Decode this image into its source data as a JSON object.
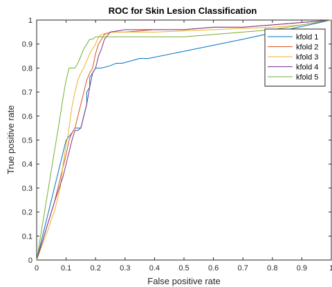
{
  "chart_data": {
    "type": "line",
    "title": "ROC for Skin Lesion Classification",
    "xlabel": "False positive rate",
    "ylabel": "True positive rate",
    "xlim": [
      0,
      1
    ],
    "ylim": [
      0,
      1
    ],
    "xticks": [
      "0",
      "0.1",
      "0.2",
      "0.3",
      "0.4",
      "0.5",
      "0.6",
      "0.7",
      "0.8",
      "0.9",
      "1"
    ],
    "yticks": [
      "0",
      "0.1",
      "0.2",
      "0.3",
      "0.4",
      "0.5",
      "0.6",
      "0.7",
      "0.8",
      "0.9",
      "1"
    ],
    "grid": false,
    "legend_position": "top-right",
    "series": [
      {
        "name": "kfold 1",
        "color": "#0072BD",
        "x": [
          0,
          0.02,
          0.04,
          0.06,
          0.08,
          0.09,
          0.1,
          0.12,
          0.13,
          0.14,
          0.15,
          0.16,
          0.17,
          0.17,
          0.18,
          0.18,
          0.19,
          0.2,
          0.22,
          0.25,
          0.27,
          0.29,
          0.32,
          0.35,
          0.38,
          0.5,
          0.7,
          0.85,
          1.0
        ],
        "y": [
          0,
          0.1,
          0.2,
          0.3,
          0.4,
          0.45,
          0.5,
          0.53,
          0.55,
          0.55,
          0.55,
          0.6,
          0.65,
          0.7,
          0.72,
          0.76,
          0.78,
          0.8,
          0.8,
          0.81,
          0.82,
          0.82,
          0.83,
          0.84,
          0.84,
          0.87,
          0.92,
          0.96,
          1.0
        ]
      },
      {
        "name": "kfold 2",
        "color": "#D95319",
        "x": [
          0,
          0.03,
          0.06,
          0.08,
          0.1,
          0.11,
          0.12,
          0.13,
          0.14,
          0.15,
          0.16,
          0.17,
          0.18,
          0.19,
          0.2,
          0.21,
          0.22,
          0.23,
          0.25,
          0.3,
          0.4,
          0.5,
          0.6,
          0.7,
          0.8,
          0.9,
          1.0
        ],
        "y": [
          0,
          0.12,
          0.24,
          0.34,
          0.44,
          0.5,
          0.53,
          0.55,
          0.6,
          0.65,
          0.7,
          0.75,
          0.78,
          0.8,
          0.86,
          0.9,
          0.92,
          0.94,
          0.95,
          0.95,
          0.96,
          0.96,
          0.97,
          0.97,
          0.98,
          0.99,
          1.0
        ]
      },
      {
        "name": "kfold 3",
        "color": "#EDB120",
        "x": [
          0,
          0.03,
          0.04,
          0.05,
          0.06,
          0.07,
          0.08,
          0.09,
          0.1,
          0.11,
          0.12,
          0.13,
          0.14,
          0.15,
          0.16,
          0.17,
          0.18,
          0.19,
          0.2,
          0.21,
          0.22,
          0.25,
          0.3,
          0.4,
          0.6,
          0.8,
          0.9,
          1.0
        ],
        "y": [
          0,
          0.1,
          0.13,
          0.17,
          0.2,
          0.25,
          0.3,
          0.4,
          0.48,
          0.55,
          0.64,
          0.7,
          0.75,
          0.78,
          0.8,
          0.83,
          0.86,
          0.88,
          0.9,
          0.93,
          0.94,
          0.95,
          0.95,
          0.95,
          0.96,
          0.97,
          0.98,
          1.0
        ]
      },
      {
        "name": "kfold 4",
        "color": "#7E2F8E",
        "x": [
          0,
          0.03,
          0.06,
          0.09,
          0.11,
          0.12,
          0.13,
          0.14,
          0.15,
          0.16,
          0.17,
          0.18,
          0.19,
          0.2,
          0.21,
          0.22,
          0.23,
          0.25,
          0.3,
          0.4,
          0.5,
          0.6,
          0.7,
          0.8,
          0.9,
          1.0
        ],
        "y": [
          0,
          0.12,
          0.24,
          0.35,
          0.45,
          0.5,
          0.54,
          0.54,
          0.55,
          0.6,
          0.65,
          0.72,
          0.78,
          0.8,
          0.85,
          0.88,
          0.92,
          0.95,
          0.96,
          0.96,
          0.96,
          0.97,
          0.97,
          0.98,
          0.99,
          1.0
        ]
      },
      {
        "name": "kfold 5",
        "color": "#77AC30",
        "x": [
          0,
          0.02,
          0.04,
          0.06,
          0.08,
          0.09,
          0.1,
          0.11,
          0.12,
          0.13,
          0.14,
          0.15,
          0.16,
          0.17,
          0.18,
          0.19,
          0.2,
          0.25,
          0.3,
          0.4,
          0.5,
          0.6,
          0.7,
          0.8,
          0.9,
          1.0
        ],
        "y": [
          0,
          0.15,
          0.3,
          0.45,
          0.6,
          0.68,
          0.75,
          0.8,
          0.8,
          0.8,
          0.82,
          0.85,
          0.88,
          0.9,
          0.92,
          0.92,
          0.93,
          0.93,
          0.93,
          0.93,
          0.93,
          0.94,
          0.95,
          0.96,
          0.98,
          1.0
        ]
      }
    ]
  }
}
